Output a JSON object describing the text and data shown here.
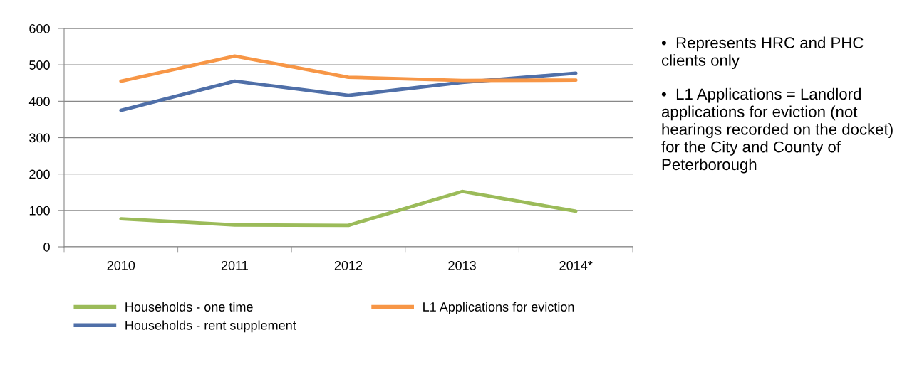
{
  "chart_data": {
    "type": "line",
    "categories": [
      "2010",
      "2011",
      "2012",
      "2013",
      "2014*"
    ],
    "series": [
      {
        "name": "Households - one time",
        "color": "#9bbb59",
        "values": [
          77,
          60,
          59,
          152,
          98
        ]
      },
      {
        "name": "Households - rent supplement",
        "color": "#4f6fa8",
        "values": [
          375,
          455,
          416,
          452,
          477
        ]
      },
      {
        "name": "L1 Applications for eviction",
        "color": "#f79646",
        "values": [
          455,
          524,
          466,
          457,
          458
        ]
      }
    ],
    "ylim": [
      0,
      600
    ],
    "yticks": [
      0,
      100,
      200,
      300,
      400,
      500,
      600
    ],
    "grid": "y",
    "legend": "bottom",
    "marker": "none",
    "line_style": "solid",
    "annotations": [
      "•  Represents HRC and PHC clients only",
      "•  L1 Applications = Landlord applications for eviction (not hearings recorded on the docket) for the City and County of Peterborough"
    ]
  }
}
